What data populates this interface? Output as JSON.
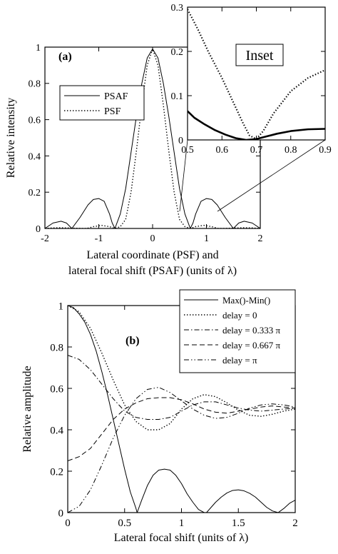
{
  "chart_data": [
    {
      "type": "line",
      "panel_label": "(a)",
      "xlabel_lines": [
        "Lateral coordinate (PSF) and",
        "lateral focal shift (PSAF) (units of λ)"
      ],
      "ylabel": "Relative intensity",
      "xlim": [
        -2,
        2
      ],
      "ylim": [
        0,
        1
      ],
      "xticks": [
        -2,
        -1,
        0,
        1,
        2
      ],
      "yticks": [
        0,
        0.2,
        0.4,
        0.6,
        0.8,
        1
      ],
      "xtick_labels": [
        "-2",
        "-1",
        "0",
        "1",
        "2"
      ],
      "ytick_labels": [
        "0",
        "0.2",
        "0.4",
        "0.6",
        "0.8",
        "1"
      ],
      "grid": false,
      "legend_position": "upper-left",
      "series": [
        {
          "name": "PSAF",
          "style": "solid",
          "x": [
            -2.0,
            -1.85,
            -1.7,
            -1.6,
            -1.5,
            -1.35,
            -1.2,
            -1.1,
            -1.0,
            -0.9,
            -0.8,
            -0.75,
            -0.7,
            -0.6,
            -0.5,
            -0.4,
            -0.3,
            -0.2,
            -0.1,
            0.0,
            0.1,
            0.2,
            0.3,
            0.4,
            0.5,
            0.6,
            0.7,
            0.75,
            0.8,
            0.9,
            1.0,
            1.1,
            1.2,
            1.35,
            1.5,
            1.6,
            1.7,
            1.85,
            2.0
          ],
          "y": [
            0.0,
            0.03,
            0.04,
            0.03,
            0.0,
            0.06,
            0.13,
            0.16,
            0.165,
            0.15,
            0.08,
            0.03,
            0.0,
            0.08,
            0.22,
            0.42,
            0.62,
            0.8,
            0.94,
            0.99,
            0.94,
            0.8,
            0.62,
            0.42,
            0.22,
            0.08,
            0.0,
            0.03,
            0.08,
            0.15,
            0.165,
            0.16,
            0.13,
            0.06,
            0.0,
            0.03,
            0.04,
            0.03,
            0.0
          ]
        },
        {
          "name": "PSF",
          "style": "dotted",
          "x": [
            -2.0,
            -1.85,
            -1.7,
            -1.5,
            -1.3,
            -1.22,
            -1.1,
            -0.95,
            -0.8,
            -0.7,
            -0.6,
            -0.5,
            -0.4,
            -0.3,
            -0.2,
            -0.1,
            0.0,
            0.1,
            0.2,
            0.3,
            0.4,
            0.5,
            0.6,
            0.7,
            0.8,
            0.95,
            1.1,
            1.22,
            1.3,
            1.5,
            1.7,
            1.85,
            2.0
          ],
          "y": [
            0.0,
            0.003,
            0.004,
            0.002,
            0.0,
            0.0,
            0.01,
            0.017,
            0.01,
            0.0,
            0.01,
            0.05,
            0.2,
            0.43,
            0.68,
            0.9,
            0.99,
            0.9,
            0.68,
            0.43,
            0.2,
            0.05,
            0.01,
            0.0,
            0.01,
            0.017,
            0.01,
            0.0,
            0.0,
            0.002,
            0.004,
            0.003,
            0.0
          ]
        }
      ],
      "inset": {
        "label": "Inset",
        "xlim": [
          0.5,
          0.9
        ],
        "ylim": [
          0,
          0.3
        ],
        "xticks": [
          0.5,
          0.6,
          0.7,
          0.8,
          0.9
        ],
        "yticks": [
          0,
          0.1,
          0.2,
          0.3
        ],
        "xtick_labels": [
          "0.5",
          "0.6",
          "0.7",
          "0.8",
          "0.9"
        ],
        "ytick_labels": [
          "0",
          "0.1",
          "0.2",
          "0.3"
        ],
        "series": [
          {
            "name": "PSAF",
            "style": "solid",
            "x": [
              0.5,
              0.52,
              0.55,
              0.58,
              0.61,
              0.64,
              0.67,
              0.7,
              0.73,
              0.76,
              0.8,
              0.85,
              0.9
            ],
            "y": [
              0.065,
              0.05,
              0.035,
              0.022,
              0.012,
              0.004,
              0.0,
              0.002,
              0.008,
              0.014,
              0.02,
              0.024,
              0.025
            ]
          },
          {
            "name": "PSF",
            "style": "dotted",
            "x": [
              0.5,
              0.53,
              0.56,
              0.6,
              0.63,
              0.66,
              0.68,
              0.7,
              0.72,
              0.75,
              0.8,
              0.85,
              0.9
            ],
            "y": [
              0.295,
              0.25,
              0.2,
              0.14,
              0.09,
              0.04,
              0.01,
              0.002,
              0.02,
              0.06,
              0.11,
              0.14,
              0.158
            ]
          }
        ]
      }
    },
    {
      "type": "line",
      "panel_label": "(b)",
      "xlabel": "Lateral focal shift (units of λ)",
      "ylabel": "Relative amplitude",
      "xlim": [
        0,
        2
      ],
      "ylim": [
        0,
        1
      ],
      "xticks": [
        0,
        0.5,
        1,
        1.5,
        2
      ],
      "yticks": [
        0,
        0.2,
        0.4,
        0.6,
        0.8,
        1
      ],
      "xtick_labels": [
        "0",
        "0.5",
        "1",
        "1.5",
        "2"
      ],
      "ytick_labels": [
        "0",
        "0.2",
        "0.4",
        "0.6",
        "0.8",
        "1"
      ],
      "grid": false,
      "legend_position": "upper-right",
      "series": [
        {
          "name": "Max()-Min()",
          "style": "solid",
          "x": [
            0.0,
            0.05,
            0.1,
            0.15,
            0.2,
            0.25,
            0.3,
            0.35,
            0.4,
            0.45,
            0.5,
            0.55,
            0.6,
            0.61,
            0.65,
            0.7,
            0.75,
            0.8,
            0.85,
            0.9,
            0.95,
            1.0,
            1.05,
            1.1,
            1.15,
            1.2,
            1.22,
            1.3,
            1.35,
            1.4,
            1.45,
            1.5,
            1.55,
            1.6,
            1.65,
            1.7,
            1.75,
            1.8,
            1.85,
            1.9,
            1.95,
            2.0
          ],
          "y": [
            1.0,
            0.99,
            0.96,
            0.92,
            0.86,
            0.78,
            0.68,
            0.57,
            0.45,
            0.33,
            0.21,
            0.1,
            0.02,
            0.0,
            0.06,
            0.13,
            0.18,
            0.205,
            0.21,
            0.205,
            0.18,
            0.14,
            0.09,
            0.05,
            0.015,
            0.0,
            0.0,
            0.05,
            0.075,
            0.095,
            0.107,
            0.11,
            0.105,
            0.093,
            0.075,
            0.05,
            0.025,
            0.008,
            0.0,
            0.02,
            0.045,
            0.06
          ]
        },
        {
          "name": "delay = 0",
          "style": "dotted",
          "x": [
            0.0,
            0.1,
            0.2,
            0.3,
            0.4,
            0.5,
            0.6,
            0.7,
            0.8,
            0.9,
            1.0,
            1.1,
            1.2,
            1.3,
            1.4,
            1.5,
            1.6,
            1.7,
            1.8,
            1.9,
            2.0
          ],
          "y": [
            1.0,
            0.97,
            0.89,
            0.77,
            0.64,
            0.52,
            0.44,
            0.4,
            0.4,
            0.43,
            0.5,
            0.55,
            0.57,
            0.56,
            0.53,
            0.495,
            0.47,
            0.465,
            0.475,
            0.49,
            0.5
          ]
        },
        {
          "name": "delay = 0.333 π",
          "style": "dashdot",
          "x": [
            0.0,
            0.1,
            0.2,
            0.3,
            0.4,
            0.5,
            0.6,
            0.7,
            0.8,
            0.9,
            1.0,
            1.1,
            1.2,
            1.3,
            1.4,
            1.5,
            1.6,
            1.7,
            1.8,
            1.9,
            2.0
          ],
          "y": [
            0.76,
            0.74,
            0.69,
            0.62,
            0.55,
            0.49,
            0.46,
            0.45,
            0.45,
            0.46,
            0.49,
            0.52,
            0.535,
            0.535,
            0.52,
            0.505,
            0.495,
            0.49,
            0.495,
            0.5,
            0.505
          ]
        },
        {
          "name": "delay = 0.667 π",
          "style": "dashed",
          "x": [
            0.0,
            0.1,
            0.2,
            0.3,
            0.4,
            0.5,
            0.6,
            0.7,
            0.8,
            0.9,
            1.0,
            1.1,
            1.2,
            1.3,
            1.4,
            1.5,
            1.6,
            1.7,
            1.8,
            1.9,
            2.0
          ],
          "y": [
            0.25,
            0.27,
            0.31,
            0.38,
            0.45,
            0.5,
            0.53,
            0.55,
            0.555,
            0.555,
            0.545,
            0.525,
            0.5,
            0.485,
            0.48,
            0.49,
            0.5,
            0.51,
            0.515,
            0.51,
            0.505
          ]
        },
        {
          "name": "delay = π",
          "style": "dashdotdot",
          "x": [
            0.0,
            0.1,
            0.2,
            0.3,
            0.4,
            0.5,
            0.6,
            0.7,
            0.8,
            0.9,
            1.0,
            1.1,
            1.2,
            1.3,
            1.4,
            1.5,
            1.6,
            1.7,
            1.8,
            1.9,
            2.0
          ],
          "y": [
            0.0,
            0.03,
            0.11,
            0.23,
            0.36,
            0.47,
            0.55,
            0.595,
            0.605,
            0.58,
            0.54,
            0.5,
            0.47,
            0.455,
            0.46,
            0.48,
            0.505,
            0.52,
            0.525,
            0.52,
            0.51
          ]
        }
      ]
    }
  ]
}
